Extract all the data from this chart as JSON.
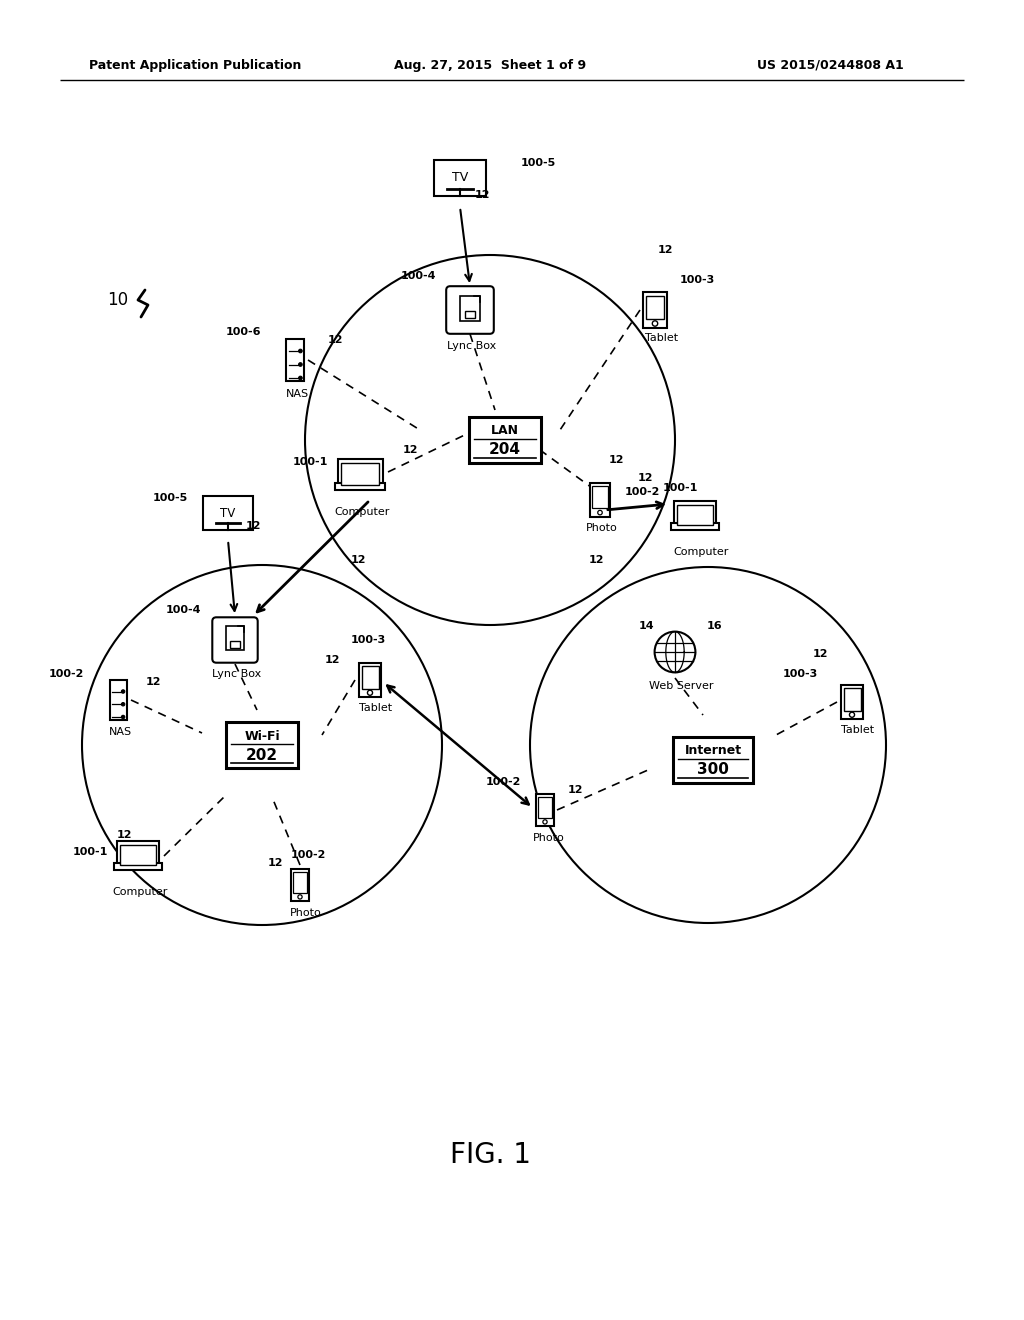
{
  "header_left": "Patent Application Publication",
  "header_center": "Aug. 27, 2015  Sheet 1 of 9",
  "header_right": "US 2015/0244808 A1",
  "figure_label": "FIG. 1",
  "bg_color": "#ffffff"
}
